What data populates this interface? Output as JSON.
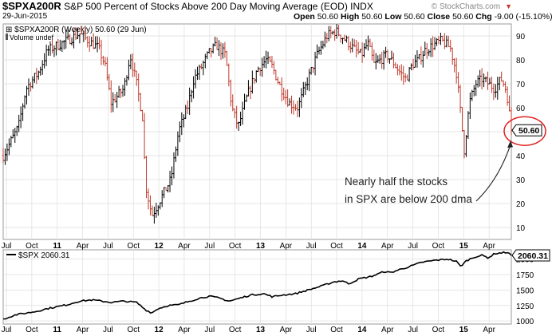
{
  "header": {
    "symbol": "$SPXA200R",
    "description": "S&P 500 Percent of Stocks Above 200 Day Moving Average (EOD)",
    "exchange": "INDX",
    "date": "29-Jun-2015",
    "open_label": "Open",
    "open": "50.60",
    "high_label": "High",
    "high": "50.60",
    "low_label": "Low",
    "low": "50.60",
    "close_label": "Close",
    "close": "50.60",
    "chg_label": "Chg",
    "chg": "-9.00 (-15.10%)",
    "watermark": "© StockCharts.com",
    "down_color": "#c0392b"
  },
  "chart_data": [
    {
      "type": "ohlc-bar",
      "legend": "$SPXA200R (Weekly) 50.60 (29 Jun)",
      "volume_legend": "Volume undef",
      "yticks": [
        10,
        20,
        30,
        40,
        50,
        60,
        70,
        80,
        90
      ],
      "ylim": [
        5,
        95
      ],
      "x_ticks": [
        "Jul",
        "Oct",
        "11",
        "Apr",
        "Jul",
        "Oct",
        "12",
        "Apr",
        "Jul",
        "Oct",
        "13",
        "Apr",
        "Jul",
        "Oct",
        "14",
        "Apr",
        "Jul",
        "Oct",
        "15",
        "Apr"
      ],
      "last_value_label": "50.60",
      "annotation": {
        "line1": "Nearly half the stocks",
        "line2": "in SPX are below 200 dma"
      },
      "anchors": [
        {
          "t": 0.0,
          "v": 40
        },
        {
          "t": 0.12,
          "v": 52
        },
        {
          "t": 0.18,
          "v": 68
        },
        {
          "t": 0.28,
          "v": 75
        },
        {
          "t": 0.35,
          "v": 84
        },
        {
          "t": 0.5,
          "v": 88
        },
        {
          "t": 0.6,
          "v": 91
        },
        {
          "t": 0.67,
          "v": 88
        },
        {
          "t": 0.75,
          "v": 85
        },
        {
          "t": 0.8,
          "v": 78
        },
        {
          "t": 0.85,
          "v": 62
        },
        {
          "t": 0.95,
          "v": 68
        },
        {
          "t": 1.0,
          "v": 82
        },
        {
          "t": 1.05,
          "v": 70
        },
        {
          "t": 1.1,
          "v": 55
        },
        {
          "t": 1.12,
          "v": 28
        },
        {
          "t": 1.17,
          "v": 15
        },
        {
          "t": 1.22,
          "v": 20
        },
        {
          "t": 1.27,
          "v": 25
        },
        {
          "t": 1.32,
          "v": 30
        },
        {
          "t": 1.38,
          "v": 50
        },
        {
          "t": 1.45,
          "v": 60
        },
        {
          "t": 1.5,
          "v": 72
        },
        {
          "t": 1.55,
          "v": 76
        },
        {
          "t": 1.62,
          "v": 83
        },
        {
          "t": 1.68,
          "v": 86
        },
        {
          "t": 1.75,
          "v": 82
        },
        {
          "t": 1.8,
          "v": 60
        },
        {
          "t": 1.85,
          "v": 52
        },
        {
          "t": 1.92,
          "v": 65
        },
        {
          "t": 2.0,
          "v": 76
        },
        {
          "t": 2.07,
          "v": 80
        },
        {
          "t": 2.12,
          "v": 77
        },
        {
          "t": 2.17,
          "v": 70
        },
        {
          "t": 2.25,
          "v": 62
        },
        {
          "t": 2.32,
          "v": 60
        },
        {
          "t": 2.4,
          "v": 72
        },
        {
          "t": 2.47,
          "v": 82
        },
        {
          "t": 2.55,
          "v": 90
        },
        {
          "t": 2.62,
          "v": 92
        },
        {
          "t": 2.7,
          "v": 88
        },
        {
          "t": 2.77,
          "v": 84
        },
        {
          "t": 2.82,
          "v": 82
        },
        {
          "t": 2.87,
          "v": 87
        },
        {
          "t": 2.92,
          "v": 78
        },
        {
          "t": 2.97,
          "v": 80
        },
        {
          "t": 3.02,
          "v": 82
        },
        {
          "t": 3.07,
          "v": 79
        },
        {
          "t": 3.12,
          "v": 75
        },
        {
          "t": 3.17,
          "v": 72
        },
        {
          "t": 3.22,
          "v": 78
        },
        {
          "t": 3.27,
          "v": 80
        },
        {
          "t": 3.32,
          "v": 84
        },
        {
          "t": 3.38,
          "v": 86
        },
        {
          "t": 3.45,
          "v": 88
        },
        {
          "t": 3.52,
          "v": 85
        },
        {
          "t": 3.57,
          "v": 74
        },
        {
          "t": 3.6,
          "v": 58
        },
        {
          "t": 3.63,
          "v": 42
        },
        {
          "t": 3.67,
          "v": 62
        },
        {
          "t": 3.72,
          "v": 70
        },
        {
          "t": 3.77,
          "v": 72
        },
        {
          "t": 3.82,
          "v": 70
        },
        {
          "t": 3.87,
          "v": 68
        },
        {
          "t": 3.92,
          "v": 72
        },
        {
          "t": 3.95,
          "v": 69
        },
        {
          "t": 3.97,
          "v": 64
        },
        {
          "t": 4.0,
          "v": 50.6
        }
      ]
    },
    {
      "type": "line",
      "legend": "$SPX 2060.31",
      "yticks": [
        1000,
        1250,
        1500,
        1750,
        2000
      ],
      "ylim": [
        950,
        2150
      ],
      "last_value_label": "2060.31",
      "anchors": [
        {
          "t": 0.0,
          "v": 1030
        },
        {
          "t": 0.1,
          "v": 1100
        },
        {
          "t": 0.25,
          "v": 1150
        },
        {
          "t": 0.35,
          "v": 1200
        },
        {
          "t": 0.5,
          "v": 1260
        },
        {
          "t": 0.6,
          "v": 1320
        },
        {
          "t": 0.7,
          "v": 1340
        },
        {
          "t": 0.85,
          "v": 1300
        },
        {
          "t": 0.95,
          "v": 1320
        },
        {
          "t": 1.05,
          "v": 1300
        },
        {
          "t": 1.12,
          "v": 1180
        },
        {
          "t": 1.17,
          "v": 1130
        },
        {
          "t": 1.22,
          "v": 1200
        },
        {
          "t": 1.3,
          "v": 1250
        },
        {
          "t": 1.38,
          "v": 1260
        },
        {
          "t": 1.45,
          "v": 1310
        },
        {
          "t": 1.55,
          "v": 1370
        },
        {
          "t": 1.62,
          "v": 1400
        },
        {
          "t": 1.7,
          "v": 1370
        },
        {
          "t": 1.78,
          "v": 1320
        },
        {
          "t": 1.85,
          "v": 1360
        },
        {
          "t": 1.95,
          "v": 1420
        },
        {
          "t": 2.05,
          "v": 1440
        },
        {
          "t": 2.12,
          "v": 1390
        },
        {
          "t": 2.2,
          "v": 1420
        },
        {
          "t": 2.3,
          "v": 1440
        },
        {
          "t": 2.4,
          "v": 1500
        },
        {
          "t": 2.5,
          "v": 1560
        },
        {
          "t": 2.6,
          "v": 1630
        },
        {
          "t": 2.67,
          "v": 1650
        },
        {
          "t": 2.72,
          "v": 1600
        },
        {
          "t": 2.8,
          "v": 1680
        },
        {
          "t": 2.9,
          "v": 1720
        },
        {
          "t": 3.0,
          "v": 1800
        },
        {
          "t": 3.05,
          "v": 1780
        },
        {
          "t": 3.12,
          "v": 1830
        },
        {
          "t": 3.2,
          "v": 1880
        },
        {
          "t": 3.3,
          "v": 1950
        },
        {
          "t": 3.4,
          "v": 1980
        },
        {
          "t": 3.5,
          "v": 2000
        },
        {
          "t": 3.57,
          "v": 1960
        },
        {
          "t": 3.6,
          "v": 1880
        },
        {
          "t": 3.65,
          "v": 1980
        },
        {
          "t": 3.72,
          "v": 2040
        },
        {
          "t": 3.77,
          "v": 2060
        },
        {
          "t": 3.82,
          "v": 2020
        },
        {
          "t": 3.87,
          "v": 2090
        },
        {
          "t": 3.92,
          "v": 2100
        },
        {
          "t": 3.97,
          "v": 2110
        },
        {
          "t": 4.0,
          "v": 2060.31
        }
      ]
    }
  ]
}
